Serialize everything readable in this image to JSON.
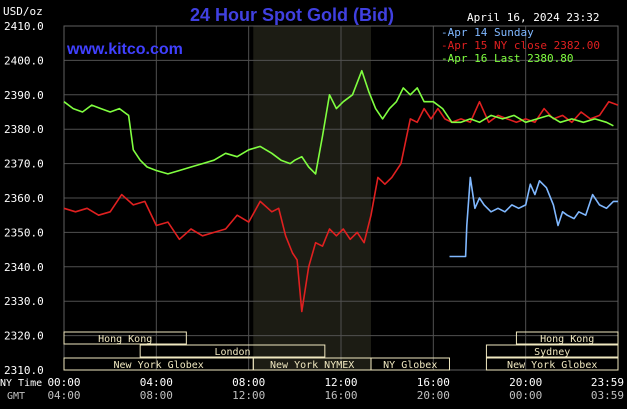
{
  "header": {
    "title": "24 Hour Spot Gold (Bid)",
    "date": "April 16, 2024 23:32",
    "unit": "USD/oz",
    "site": "www.kitco.com"
  },
  "colors": {
    "background": "#000000",
    "grid": "#505050",
    "highlight": "#1c1c14",
    "title": "#4040e0",
    "blue": "#80b8ff",
    "red": "#e02020",
    "green": "#80ff40",
    "session_fill": "#f0e8c0",
    "session_text": "#202020"
  },
  "chart_data": {
    "type": "line",
    "title": "24 Hour Spot Gold (Bid)",
    "ylabel": "USD/oz",
    "xlabel": "",
    "xlim": [
      0,
      24
    ],
    "ylim": [
      2310,
      2410
    ],
    "y_ticks": [
      "2410.0",
      "2400.0",
      "2390.0",
      "2380.0",
      "2370.0",
      "2360.0",
      "2350.0",
      "2340.0",
      "2330.0",
      "2320.0",
      "2310.0"
    ],
    "x_ticks_ny": [
      "00:00",
      "04:00",
      "08:00",
      "12:00",
      "16:00",
      "20:00",
      "23:59"
    ],
    "x_ticks_gmt": [
      "04:00",
      "08:00",
      "12:00",
      "16:00",
      "20:00",
      "00:00",
      "03:59"
    ],
    "x_row_label_ny": "NY Time",
    "x_row_label_gmt": "GMT",
    "highlight_range": [
      8.2,
      13.3
    ],
    "grid": true,
    "legend_position": "top-right",
    "legend": [
      {
        "label": "Apr 14 Sunday",
        "color": "#80b8ff"
      },
      {
        "label": "Apr 15 NY close 2382.00",
        "color": "#e02020"
      },
      {
        "label": "Apr 16 Last 2380.80",
        "color": "#80ff40"
      }
    ],
    "series": [
      {
        "name": "Apr 14 Sunday",
        "color": "#80b8ff",
        "x": [
          16.7,
          17.4,
          17.45,
          17.6,
          17.8,
          18.0,
          18.2,
          18.5,
          18.8,
          19.1,
          19.4,
          19.7,
          20.0,
          20.2,
          20.4,
          20.6,
          20.9,
          21.2,
          21.4,
          21.6,
          21.8,
          22.1,
          22.3,
          22.6,
          22.9,
          23.2,
          23.5,
          23.8,
          24.0
        ],
        "y": [
          2343,
          2343,
          2352,
          2366,
          2357,
          2360,
          2358,
          2356,
          2357,
          2356,
          2358,
          2357,
          2358,
          2364,
          2361,
          2365,
          2363,
          2358,
          2352,
          2356,
          2355,
          2354,
          2356,
          2355,
          2361,
          2358,
          2357,
          2359,
          2359
        ]
      },
      {
        "name": "Apr 15 NY close 2382.00",
        "color": "#e02020",
        "x": [
          0.0,
          0.5,
          1.0,
          1.5,
          2.0,
          2.5,
          3.0,
          3.5,
          4.0,
          4.5,
          5.0,
          5.5,
          6.0,
          6.5,
          7.0,
          7.5,
          8.0,
          8.5,
          9.0,
          9.3,
          9.6,
          9.9,
          10.1,
          10.3,
          10.6,
          10.9,
          11.2,
          11.5,
          11.8,
          12.1,
          12.4,
          12.7,
          13.0,
          13.3,
          13.6,
          13.9,
          14.2,
          14.6,
          15.0,
          15.3,
          15.6,
          15.9,
          16.2,
          16.5,
          16.8,
          17.2,
          17.6,
          18.0,
          18.4,
          18.8,
          19.2,
          19.6,
          20.0,
          20.4,
          20.8,
          21.2,
          21.6,
          22.0,
          22.4,
          22.8,
          23.2,
          23.6,
          24.0
        ],
        "y": [
          2357,
          2356,
          2357,
          2355,
          2356,
          2361,
          2358,
          2359,
          2352,
          2353,
          2348,
          2351,
          2349,
          2350,
          2351,
          2355,
          2353,
          2359,
          2356,
          2357,
          2349,
          2344,
          2342,
          2327,
          2340,
          2347,
          2346,
          2351,
          2349,
          2351,
          2348,
          2350,
          2347,
          2355,
          2366,
          2364,
          2366,
          2370,
          2383,
          2382,
          2386,
          2383,
          2386,
          2383,
          2382,
          2383,
          2382,
          2388,
          2382,
          2384,
          2383,
          2382,
          2383,
          2382,
          2386,
          2383,
          2384,
          2382,
          2385,
          2383,
          2384,
          2388,
          2387
        ]
      },
      {
        "name": "Apr 16 Last 2380.80",
        "color": "#80ff40",
        "x": [
          0.0,
          0.4,
          0.8,
          1.2,
          1.6,
          2.0,
          2.4,
          2.8,
          3.0,
          3.3,
          3.6,
          4.0,
          4.5,
          5.0,
          5.5,
          6.0,
          6.5,
          7.0,
          7.5,
          8.0,
          8.5,
          9.0,
          9.4,
          9.8,
          10.0,
          10.3,
          10.6,
          10.9,
          11.2,
          11.5,
          11.8,
          12.1,
          12.5,
          12.9,
          13.2,
          13.5,
          13.8,
          14.1,
          14.4,
          14.7,
          15.0,
          15.3,
          15.6,
          16.0,
          16.4,
          16.8,
          17.2,
          17.6,
          18.0,
          18.5,
          19.0,
          19.5,
          20.0,
          20.5,
          21.0,
          21.5,
          22.0,
          22.5,
          23.0,
          23.5,
          23.8
        ],
        "y": [
          2388,
          2386,
          2385,
          2387,
          2386,
          2385,
          2386,
          2384,
          2374,
          2371,
          2369,
          2368,
          2367,
          2368,
          2369,
          2370,
          2371,
          2373,
          2372,
          2374,
          2375,
          2373,
          2371,
          2370,
          2371,
          2372,
          2369,
          2367,
          2378,
          2390,
          2386,
          2388,
          2390,
          2397,
          2391,
          2386,
          2383,
          2386,
          2388,
          2392,
          2390,
          2392,
          2388,
          2388,
          2386,
          2382,
          2382,
          2383,
          2382,
          2384,
          2383,
          2384,
          2382,
          2383,
          2384,
          2382,
          2383,
          2382,
          2383,
          2382,
          2381
        ]
      }
    ],
    "sessions": [
      {
        "label": "Hong Kong",
        "start": 0.0,
        "end": 5.3,
        "row": 0
      },
      {
        "label": "Hong Kong",
        "start": 19.6,
        "end": 24.0,
        "row": 0
      },
      {
        "label": "London",
        "start": 3.3,
        "end": 11.3,
        "row": 1
      },
      {
        "label": "Sydney",
        "start": 18.3,
        "end": 24.0,
        "row": 1
      },
      {
        "label": "New York Globex",
        "start": 0.0,
        "end": 8.2,
        "row": 2
      },
      {
        "label": "New York NYMEX",
        "start": 8.2,
        "end": 13.3,
        "row": 2
      },
      {
        "label": "NY Globex",
        "start": 13.3,
        "end": 16.7,
        "row": 2
      },
      {
        "label": "New York Globex",
        "start": 18.3,
        "end": 24.0,
        "row": 2
      }
    ]
  }
}
